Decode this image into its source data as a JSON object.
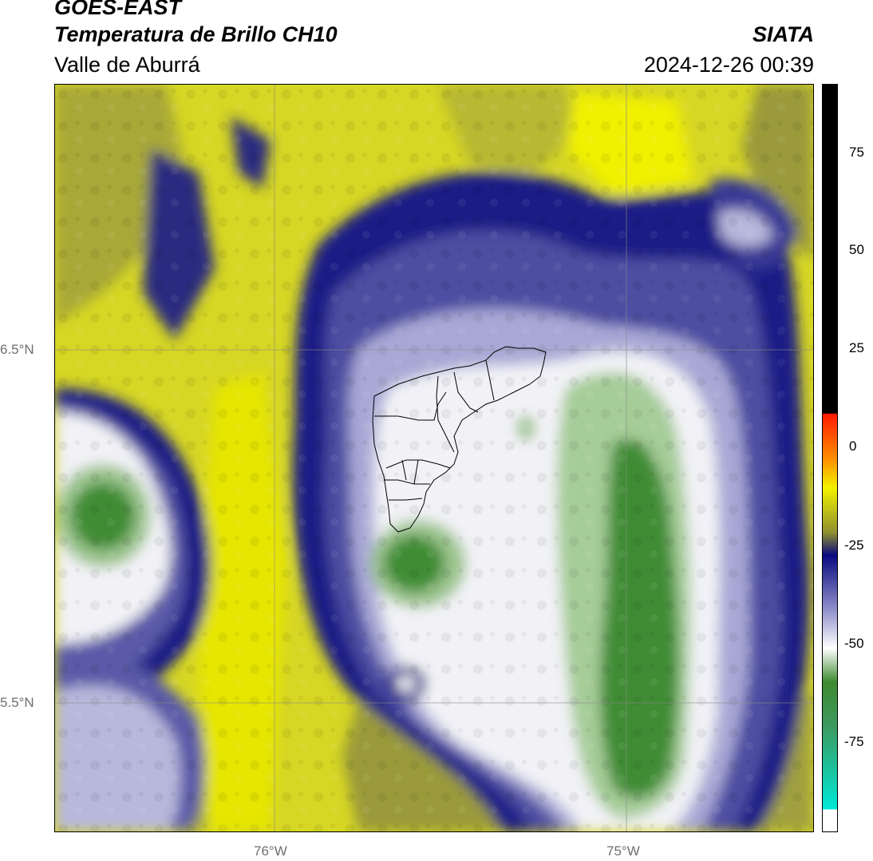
{
  "header": {
    "satellite": "GOES-EAST",
    "product": "Temperatura de Brillo CH10",
    "region": "Valle de Aburrá",
    "org": "SIATA",
    "timestamp": "2024-12-26 00:39"
  },
  "axes": {
    "lat_labels": [
      "6.5°N",
      "5.5°N"
    ],
    "lon_labels": [
      "76°W",
      "75°W"
    ]
  },
  "colorbar": {
    "ticks": [
      "75",
      "50",
      "25",
      "0",
      "-25",
      "-50",
      "-75"
    ],
    "tick_values": [
      75,
      50,
      25,
      0,
      -25,
      -50,
      -75
    ],
    "range": [
      -95,
      90
    ],
    "colors": {
      "black": "#000000",
      "red": "#ff2a00",
      "orange": "#ff9900",
      "yellow": "#f2f200",
      "olive": "#8f8f30",
      "navy": "#0a0a80",
      "lavender": "#b4b4dc",
      "white": "#ffffff",
      "green": "#3d8a30",
      "cyan": "#00e0d0"
    }
  },
  "map_colors": {
    "background_yellow": "#d6d624",
    "bright_yellow": "#f0f000",
    "olive": "#9a9a3a",
    "navy": "#1c1c86",
    "blue_mid": "#5a5aa8",
    "lavender": "#b8b8dc",
    "white": "#f4f4f8",
    "green_light": "#9cc48e",
    "green_dark": "#3f8c34",
    "grid": "#888888",
    "boundary": "#000000"
  }
}
